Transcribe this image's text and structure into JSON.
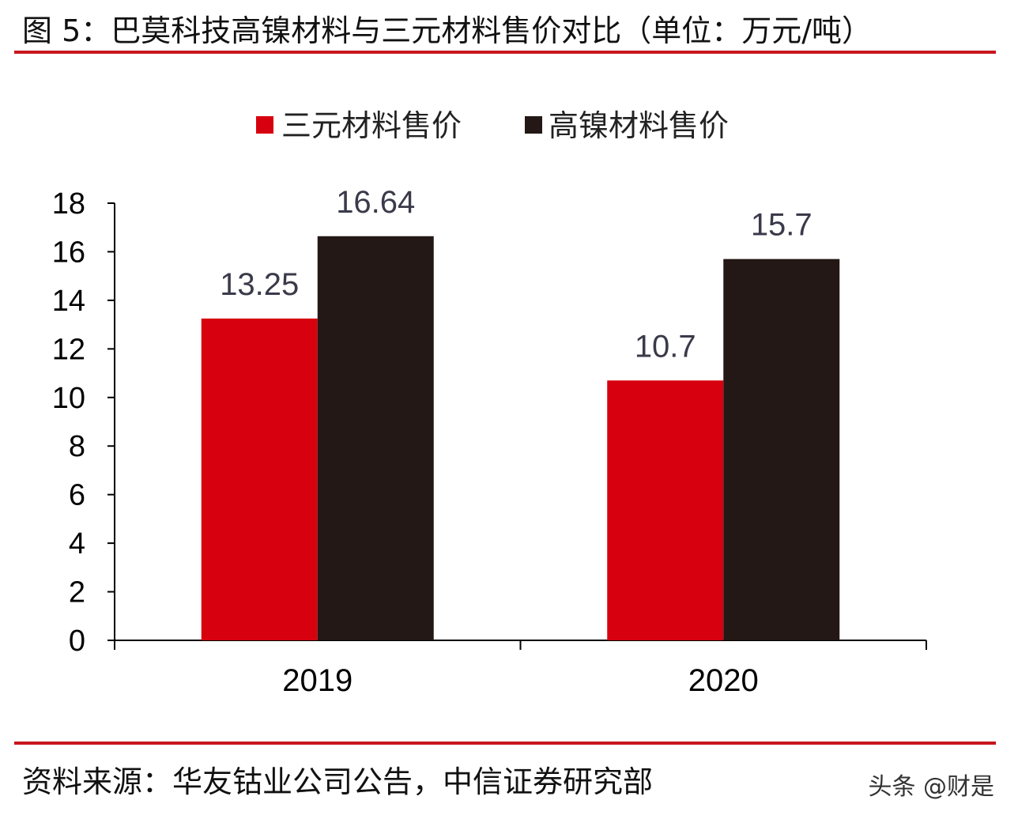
{
  "title": "图 5：巴莫科技高镍材料与三元材料售价对比（单位：万元/吨）",
  "source": "资料来源：华友钴业公司公告，中信证券研究部",
  "watermark": "头条 @财是",
  "chart_data": {
    "type": "bar",
    "categories": [
      "2019",
      "2020"
    ],
    "series": [
      {
        "name": "三元材料售价",
        "values": [
          13.25,
          10.7
        ],
        "color": "#d7000f",
        "labels": [
          "13.25",
          "10.7"
        ]
      },
      {
        "name": "高镍材料售价",
        "values": [
          16.64,
          15.7
        ],
        "color": "#231815",
        "labels": [
          "16.64",
          "15.7"
        ]
      }
    ],
    "ylim": [
      0,
      18
    ],
    "yticks": [
      "0",
      "2",
      "4",
      "6",
      "8",
      "10",
      "12",
      "14",
      "16",
      "18"
    ],
    "grid": false,
    "legend": "top-center"
  }
}
